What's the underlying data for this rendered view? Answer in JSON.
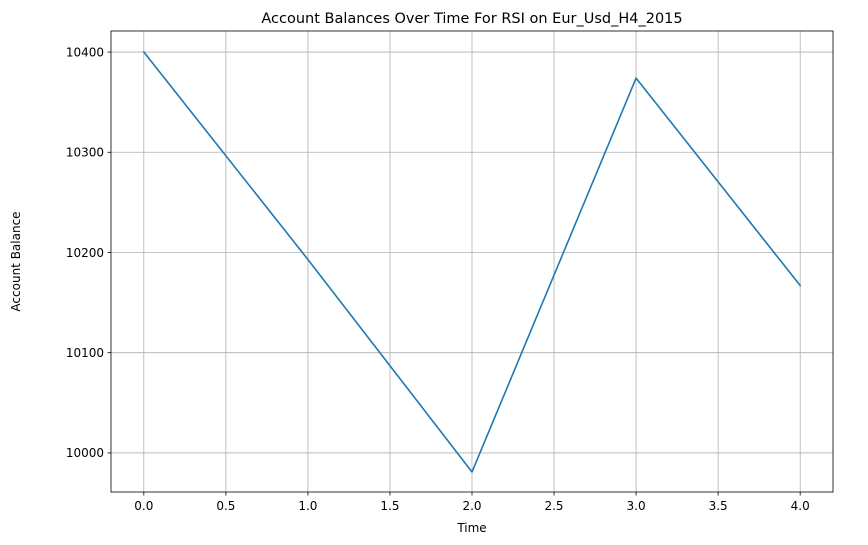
{
  "chart_data": {
    "type": "line",
    "title": "Account Balances Over Time For RSI on Eur_Usd_H4_2015",
    "xlabel": "Time",
    "ylabel": "Account Balance",
    "x": [
      0,
      1,
      2,
      3,
      4
    ],
    "series": [
      {
        "values": [
          10400,
          10193,
          9981,
          10374,
          10167
        ],
        "color": "#1f77b4"
      }
    ],
    "xlim": [
      -0.2,
      4.2
    ],
    "ylim": [
      9961,
      10421
    ],
    "xticks": [
      0.0,
      0.5,
      1.0,
      1.5,
      2.0,
      2.5,
      3.0,
      3.5,
      4.0
    ],
    "xtick_labels": [
      "0.0",
      "0.5",
      "1.0",
      "1.5",
      "2.0",
      "2.5",
      "3.0",
      "3.5",
      "4.0"
    ],
    "yticks": [
      10000,
      10100,
      10200,
      10300,
      10400
    ],
    "ytick_labels": [
      "10000",
      "10100",
      "10200",
      "10300",
      "10400"
    ],
    "grid": true,
    "grid_color": "#b0b0b0",
    "legend": false
  }
}
